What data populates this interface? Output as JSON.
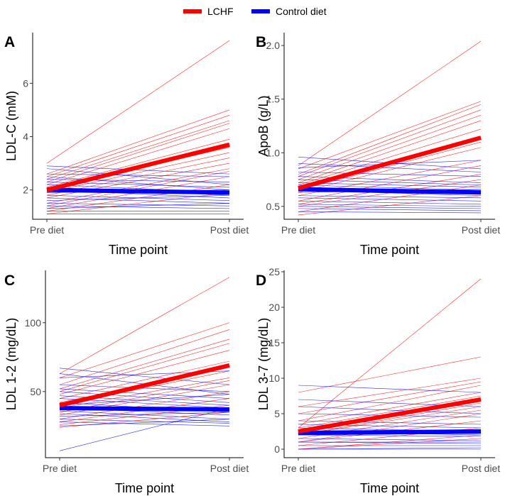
{
  "legend": {
    "items": [
      {
        "label": "LCHF",
        "color": "#ff0000"
      },
      {
        "label": "Control diet",
        "color": "#0000ff"
      }
    ]
  },
  "colors": {
    "lchf": "#ff0000",
    "control": "#0000ff",
    "axis": "#000000",
    "tick_text": "#4d4d4d"
  },
  "chart_data": [
    {
      "type": "line",
      "panel": "A",
      "ylabel": "LDL-C (mM)",
      "xlabel": "Time point",
      "categories": [
        "Pre diet",
        "Post diet"
      ],
      "ylim": [
        0.9,
        7.9
      ],
      "yticks": [
        2,
        4,
        6
      ],
      "series": [
        {
          "name": "LCHF",
          "values": [
            2.0,
            3.7
          ],
          "individuals": [
            [
              3.0,
              7.6
            ],
            [
              2.6,
              5.0
            ],
            [
              2.5,
              4.8
            ],
            [
              2.4,
              4.6
            ],
            [
              2.3,
              4.5
            ],
            [
              2.2,
              4.3
            ],
            [
              2.1,
              3.9
            ],
            [
              2.0,
              3.6
            ],
            [
              1.9,
              3.4
            ],
            [
              1.8,
              3.2
            ],
            [
              1.7,
              3.0
            ],
            [
              1.5,
              2.8
            ],
            [
              1.4,
              2.7
            ],
            [
              1.3,
              2.5
            ],
            [
              1.2,
              2.2
            ],
            [
              1.1,
              1.9
            ]
          ]
        },
        {
          "name": "Control diet",
          "values": [
            2.0,
            1.9
          ],
          "individuals": [
            [
              2.9,
              2.6
            ],
            [
              2.8,
              2.2
            ],
            [
              2.6,
              2.5
            ],
            [
              2.5,
              2.0
            ],
            [
              2.4,
              2.3
            ],
            [
              2.3,
              2.1
            ],
            [
              2.2,
              1.9
            ],
            [
              2.1,
              1.8
            ],
            [
              2.0,
              1.7
            ],
            [
              1.9,
              2.0
            ],
            [
              1.8,
              1.6
            ],
            [
              1.7,
              1.5
            ],
            [
              1.6,
              1.8
            ],
            [
              1.5,
              1.4
            ],
            [
              1.4,
              1.3
            ],
            [
              1.3,
              1.5
            ],
            [
              1.2,
              1.2
            ],
            [
              1.1,
              1.1
            ]
          ]
        }
      ]
    },
    {
      "type": "line",
      "panel": "B",
      "ylabel": "ApoB (g/L)",
      "xlabel": "Time point",
      "categories": [
        "Pre diet",
        "Post diet"
      ],
      "ylim": [
        0.38,
        2.12
      ],
      "yticks": [
        0.5,
        1.0,
        1.5,
        2.0
      ],
      "ytick_labels": [
        "0.5",
        "1.0",
        "1.5",
        "2.0"
      ],
      "series": [
        {
          "name": "LCHF",
          "values": [
            0.67,
            1.14
          ],
          "individuals": [
            [
              0.88,
              2.04
            ],
            [
              0.85,
              1.48
            ],
            [
              0.8,
              1.45
            ],
            [
              0.78,
              1.4
            ],
            [
              0.75,
              1.35
            ],
            [
              0.72,
              1.3
            ],
            [
              0.7,
              1.22
            ],
            [
              0.68,
              1.15
            ],
            [
              0.65,
              1.1
            ],
            [
              0.63,
              1.05
            ],
            [
              0.6,
              0.93
            ],
            [
              0.55,
              0.88
            ],
            [
              0.52,
              0.8
            ],
            [
              0.5,
              0.75
            ],
            [
              0.45,
              0.7
            ],
            [
              0.42,
              0.6
            ]
          ]
        },
        {
          "name": "Control diet",
          "values": [
            0.66,
            0.63
          ],
          "individuals": [
            [
              0.96,
              0.85
            ],
            [
              0.9,
              0.82
            ],
            [
              0.86,
              0.93
            ],
            [
              0.82,
              0.78
            ],
            [
              0.78,
              0.72
            ],
            [
              0.75,
              0.7
            ],
            [
              0.72,
              0.68
            ],
            [
              0.7,
              0.65
            ],
            [
              0.68,
              0.62
            ],
            [
              0.65,
              0.6
            ],
            [
              0.63,
              0.66
            ],
            [
              0.6,
              0.58
            ],
            [
              0.58,
              0.55
            ],
            [
              0.55,
              0.52
            ],
            [
              0.52,
              0.5
            ],
            [
              0.5,
              0.48
            ],
            [
              0.48,
              0.46
            ],
            [
              0.45,
              0.44
            ]
          ]
        }
      ]
    },
    {
      "type": "line",
      "panel": "C",
      "ylabel": "LDL 1-2 (mg/dL)",
      "xlabel": "Time point",
      "categories": [
        "Pre diet",
        "Post diet"
      ],
      "ylim": [
        2,
        138
      ],
      "yticks": [
        50,
        100
      ],
      "series": [
        {
          "name": "LCHF",
          "values": [
            40,
            69
          ],
          "individuals": [
            [
              63,
              133
            ],
            [
              60,
              100
            ],
            [
              55,
              95
            ],
            [
              52,
              88
            ],
            [
              50,
              85
            ],
            [
              48,
              80
            ],
            [
              45,
              72
            ],
            [
              42,
              68
            ],
            [
              40,
              65
            ],
            [
              38,
              60
            ],
            [
              35,
              58
            ],
            [
              33,
              55
            ],
            [
              30,
              50
            ],
            [
              28,
              45
            ],
            [
              26,
              40
            ],
            [
              24,
              35
            ]
          ]
        },
        {
          "name": "Control diet",
          "values": [
            38,
            37
          ],
          "individuals": [
            [
              67,
              55
            ],
            [
              63,
              48
            ],
            [
              60,
              65
            ],
            [
              55,
              50
            ],
            [
              52,
              45
            ],
            [
              50,
              42
            ],
            [
              47,
              40
            ],
            [
              45,
              38
            ],
            [
              42,
              35
            ],
            [
              40,
              48
            ],
            [
              38,
              33
            ],
            [
              36,
              30
            ],
            [
              34,
              28
            ],
            [
              32,
              35
            ],
            [
              30,
              27
            ],
            [
              28,
              25
            ],
            [
              25,
              30
            ],
            [
              7,
              38
            ]
          ]
        }
      ]
    },
    {
      "type": "line",
      "panel": "D",
      "ylabel": "LDL 3-7 (mg/dL)",
      "xlabel": "Time point",
      "categories": [
        "Pre diet",
        "Post diet"
      ],
      "ylim": [
        -1.2,
        25.2
      ],
      "yticks": [
        0,
        5,
        10,
        15,
        20,
        25
      ],
      "series": [
        {
          "name": "LCHF",
          "values": [
            2.5,
            7.0
          ],
          "individuals": [
            [
              3.0,
              24.0
            ],
            [
              8.0,
              13.0
            ],
            [
              6.0,
              10.0
            ],
            [
              5.0,
              9.5
            ],
            [
              4.0,
              9.0
            ],
            [
              3.5,
              8.0
            ],
            [
              3.0,
              7.5
            ],
            [
              2.5,
              7.0
            ],
            [
              2.0,
              6.5
            ],
            [
              2.0,
              6.0
            ],
            [
              1.5,
              5.5
            ],
            [
              1.0,
              5.0
            ],
            [
              1.0,
              4.0
            ],
            [
              0.5,
              3.0
            ],
            [
              0.0,
              2.0
            ],
            [
              0.0,
              1.5
            ]
          ]
        },
        {
          "name": "Control diet",
          "values": [
            2.3,
            2.5
          ],
          "individuals": [
            [
              9.0,
              8.0
            ],
            [
              7.0,
              6.0
            ],
            [
              6.0,
              5.0
            ],
            [
              5.0,
              4.5
            ],
            [
              4.0,
              3.5
            ],
            [
              3.5,
              3.0
            ],
            [
              3.0,
              2.5
            ],
            [
              2.5,
              2.0
            ],
            [
              2.0,
              1.8
            ],
            [
              2.0,
              2.2
            ],
            [
              1.5,
              1.2
            ],
            [
              1.0,
              1.0
            ],
            [
              1.0,
              0.8
            ],
            [
              0.5,
              0.5
            ],
            [
              0.0,
              0.2
            ],
            [
              0.0,
              0.0
            ]
          ]
        }
      ]
    }
  ]
}
